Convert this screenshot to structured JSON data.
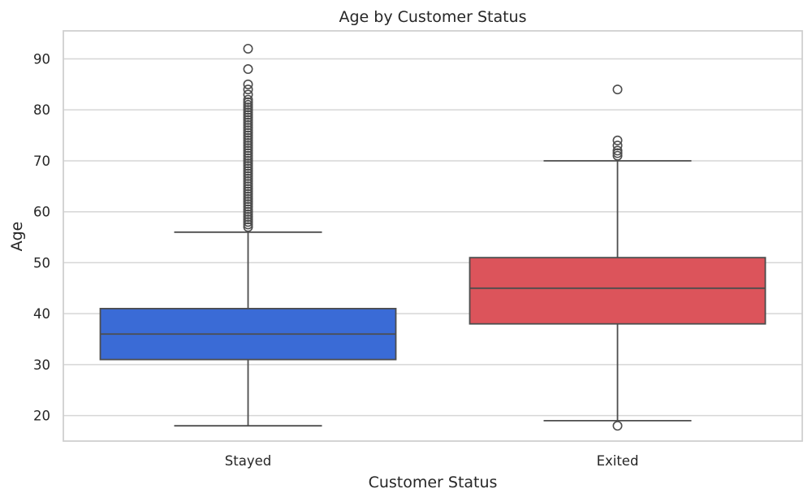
{
  "chart_data": {
    "type": "box",
    "title": "Age by Customer Status",
    "xlabel": "Customer Status",
    "ylabel": "Age",
    "ylim": [
      15,
      95.5
    ],
    "yticks": [
      20,
      30,
      40,
      50,
      60,
      70,
      80,
      90
    ],
    "grid": true,
    "categories": [
      "Stayed",
      "Exited"
    ],
    "boxes": [
      {
        "label": "Stayed",
        "color": "#3a6bd6",
        "whisker_low": 18,
        "q1": 31,
        "median": 36,
        "q3": 41,
        "whisker_high": 56,
        "fliers": [
          57,
          57.5,
          58,
          58.5,
          59,
          59.5,
          60,
          60.5,
          61,
          61.5,
          62,
          62.5,
          63,
          63.5,
          64,
          64.5,
          65,
          65.5,
          66,
          66.5,
          67,
          67.5,
          68,
          68.5,
          69,
          69.5,
          70,
          70.5,
          71,
          71.5,
          72,
          72.5,
          73,
          73.5,
          74,
          74.5,
          75,
          75.5,
          76,
          76.5,
          77,
          77.5,
          78,
          78.5,
          79,
          79.5,
          80,
          80.5,
          81,
          81.5,
          82,
          83,
          84,
          85,
          88,
          92
        ]
      },
      {
        "label": "Exited",
        "color": "#dc545b",
        "whisker_low": 19,
        "q1": 38,
        "median": 45,
        "q3": 51,
        "whisker_high": 70,
        "fliers": [
          18,
          71,
          71.5,
          72,
          73,
          74,
          84
        ]
      }
    ]
  }
}
